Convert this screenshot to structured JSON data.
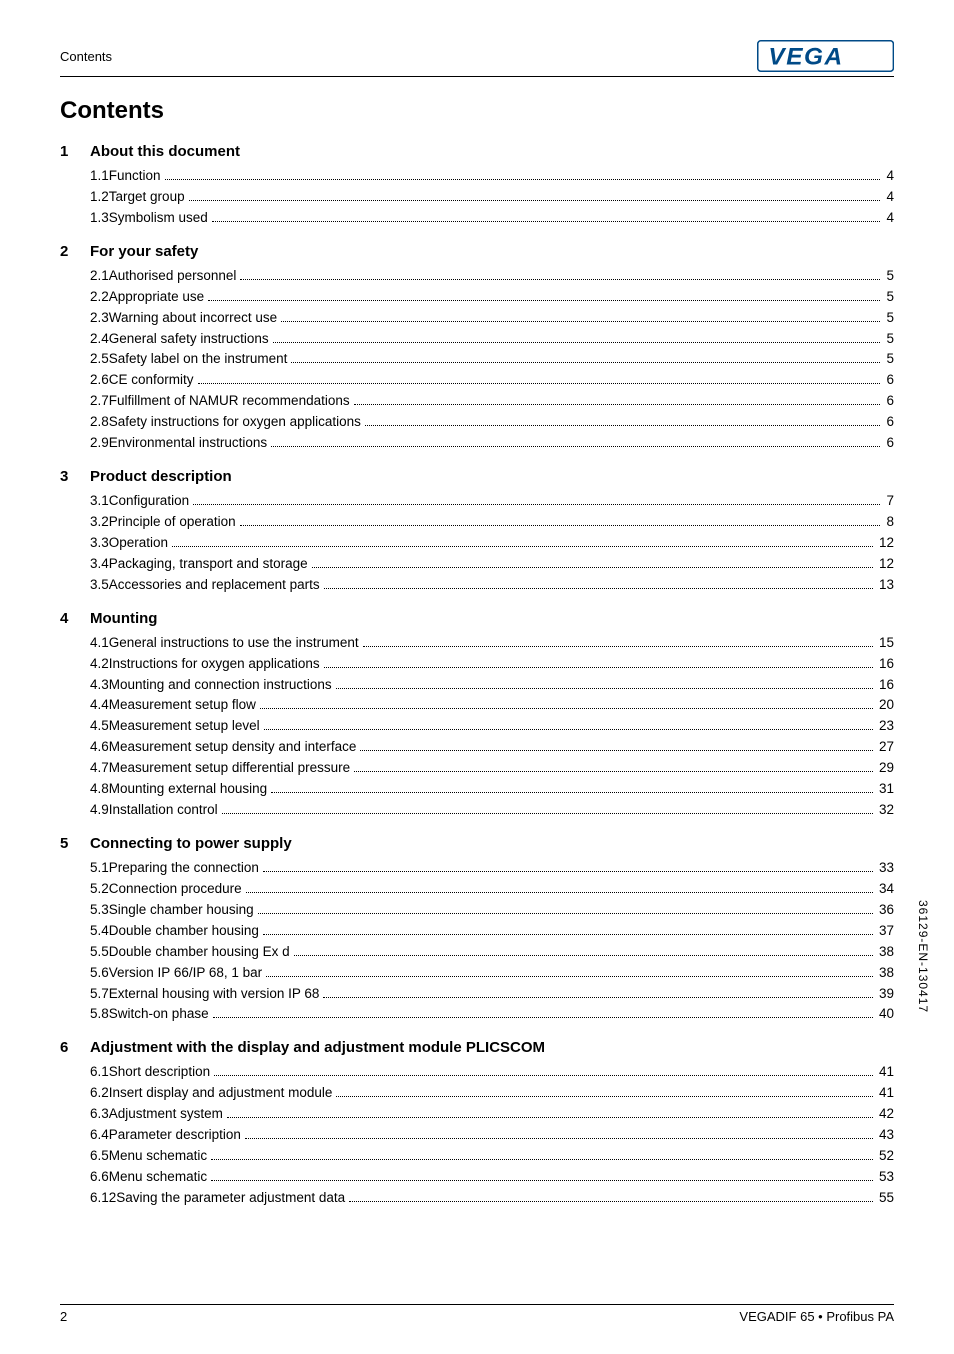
{
  "header": {
    "left": "Contents"
  },
  "logo": {
    "bg": "#ffffff",
    "border": "#004a87",
    "text_fill": "#004a87",
    "letters": "VEGA"
  },
  "title": "Contents",
  "sections": [
    {
      "num": "1",
      "title": "About this document",
      "items": [
        {
          "num": "1.1",
          "label": "Function",
          "page": "4"
        },
        {
          "num": "1.2",
          "label": "Target group",
          "page": "4"
        },
        {
          "num": "1.3",
          "label": "Symbolism used",
          "page": "4"
        }
      ]
    },
    {
      "num": "2",
      "title": "For your safety",
      "items": [
        {
          "num": "2.1",
          "label": "Authorised personnel",
          "page": "5"
        },
        {
          "num": "2.2",
          "label": "Appropriate use",
          "page": "5"
        },
        {
          "num": "2.3",
          "label": "Warning about incorrect use",
          "page": "5"
        },
        {
          "num": "2.4",
          "label": "General safety instructions",
          "page": "5"
        },
        {
          "num": "2.5",
          "label": "Safety label on the instrument",
          "page": "5"
        },
        {
          "num": "2.6",
          "label": "CE conformity",
          "page": "6"
        },
        {
          "num": "2.7",
          "label": "Fulfillment of NAMUR recommendations",
          "page": "6"
        },
        {
          "num": "2.8",
          "label": "Safety instructions for oxygen applications",
          "page": "6"
        },
        {
          "num": "2.9",
          "label": "Environmental instructions",
          "page": "6"
        }
      ]
    },
    {
      "num": "3",
      "title": "Product description",
      "items": [
        {
          "num": "3.1",
          "label": "Configuration",
          "page": "7"
        },
        {
          "num": "3.2",
          "label": "Principle of operation",
          "page": "8"
        },
        {
          "num": "3.3",
          "label": "Operation",
          "page": "12"
        },
        {
          "num": "3.4",
          "label": "Packaging, transport and storage",
          "page": "12"
        },
        {
          "num": "3.5",
          "label": "Accessories and replacement parts",
          "page": "13"
        }
      ]
    },
    {
      "num": "4",
      "title": "Mounting",
      "items": [
        {
          "num": "4.1",
          "label": "General instructions to use the instrument",
          "page": "15"
        },
        {
          "num": "4.2",
          "label": "Instructions for oxygen applications",
          "page": "16"
        },
        {
          "num": "4.3",
          "label": "Mounting and connection instructions",
          "page": "16"
        },
        {
          "num": "4.4",
          "label": "Measurement setup flow",
          "page": "20"
        },
        {
          "num": "4.5",
          "label": "Measurement setup level",
          "page": "23"
        },
        {
          "num": "4.6",
          "label": "Measurement setup density and interface",
          "page": "27"
        },
        {
          "num": "4.7",
          "label": "Measurement setup differential pressure",
          "page": "29"
        },
        {
          "num": "4.8",
          "label": "Mounting external housing",
          "page": "31"
        },
        {
          "num": "4.9",
          "label": "Installation control",
          "page": "32"
        }
      ]
    },
    {
      "num": "5",
      "title": "Connecting to power supply",
      "items": [
        {
          "num": "5.1",
          "label": "Preparing the connection",
          "page": "33"
        },
        {
          "num": "5.2",
          "label": "Connection procedure",
          "page": "34"
        },
        {
          "num": "5.3",
          "label": "Single chamber housing",
          "page": "36"
        },
        {
          "num": "5.4",
          "label": "Double chamber housing",
          "page": "37"
        },
        {
          "num": "5.5",
          "label": "Double chamber housing Ex d",
          "page": "38"
        },
        {
          "num": "5.6",
          "label": "Version IP 66/IP 68, 1 bar",
          "page": "38"
        },
        {
          "num": "5.7",
          "label": "External housing with version IP 68",
          "page": "39"
        },
        {
          "num": "5.8",
          "label": "Switch-on phase",
          "page": "40"
        }
      ]
    },
    {
      "num": "6",
      "title": "Adjustment with the display and adjustment module PLICSCOM",
      "items": [
        {
          "num": "6.1",
          "label": "Short description",
          "page": "41"
        },
        {
          "num": "6.2",
          "label": "Insert display and adjustment module",
          "page": "41"
        },
        {
          "num": "6.3",
          "label": "Adjustment system",
          "page": "42"
        },
        {
          "num": "6.4",
          "label": "Parameter description",
          "page": "43"
        },
        {
          "num": "6.5",
          "label": "Menu schematic",
          "page": "52"
        },
        {
          "num": "6.6",
          "label": "Menu schematic",
          "page": "53"
        },
        {
          "num": "6.12",
          "label": "Saving the parameter adjustment data",
          "page": "55"
        }
      ]
    }
  ],
  "footer": {
    "page_num": "2",
    "doc_ref": "VEGADIF 65 • Profibus PA"
  },
  "side_id": "36129-EN-130417"
}
